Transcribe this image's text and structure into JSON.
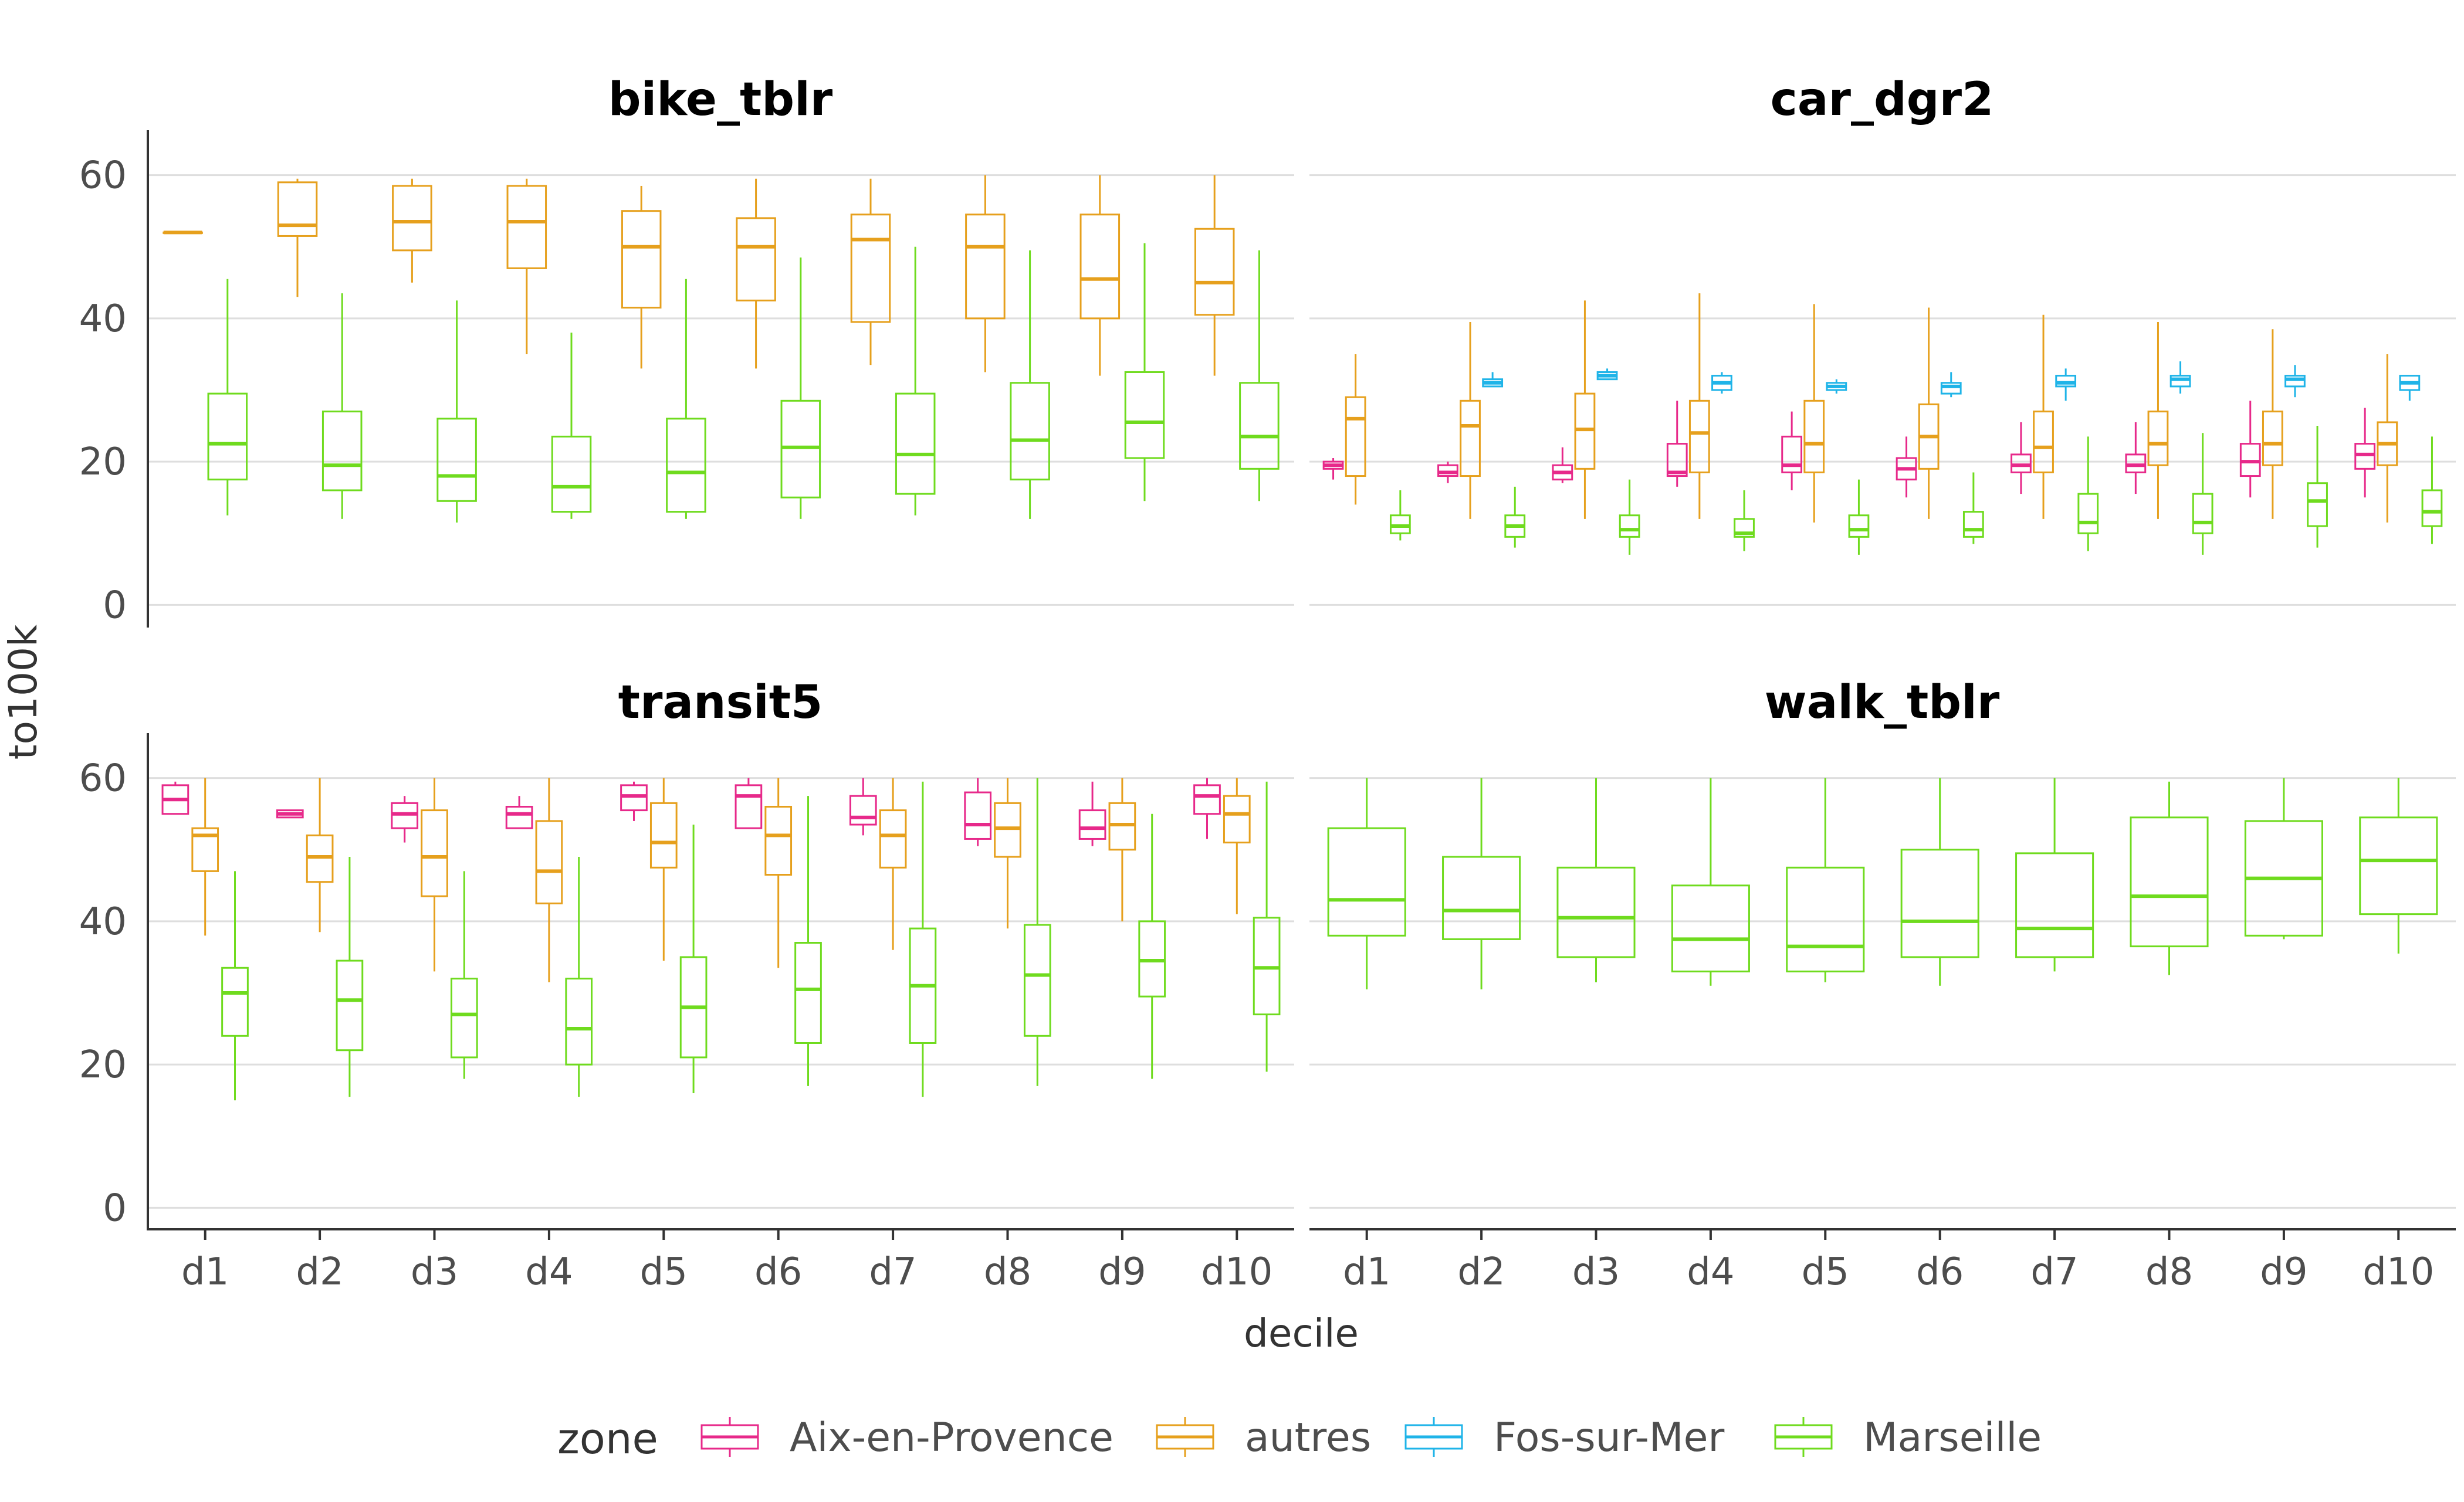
{
  "chart_data": {
    "type": "boxplot",
    "facets": [
      "bike_tblr",
      "car_dgr2",
      "transit5",
      "walk_tblr"
    ],
    "categories": [
      "d1",
      "d2",
      "d3",
      "d4",
      "d5",
      "d6",
      "d7",
      "d8",
      "d9",
      "d10"
    ],
    "xlabel": "decile",
    "ylabel": "to100k",
    "ylim": [
      -3,
      63
    ],
    "yticks": [
      "0",
      "20",
      "40",
      "60"
    ],
    "grid": true,
    "legend": {
      "title": "zone",
      "position": "bottom",
      "entries": [
        {
          "name": "Aix-en-Provence",
          "color": "#e7298a"
        },
        {
          "name": "autres",
          "color": "#e6a01d"
        },
        {
          "name": "Fos-sur-Mer",
          "color": "#1fb4e8"
        },
        {
          "name": "Marseille",
          "color": "#6fdb1e"
        }
      ]
    },
    "panels": [
      {
        "facet": "bike_tblr",
        "series": [
          {
            "name": "autres",
            "boxes": [
              [
                52,
                52,
                52,
                52,
                52
              ],
              [
                43,
                51.5,
                53,
                59,
                59.5
              ],
              [
                45,
                49.5,
                53.5,
                58.5,
                59.5
              ],
              [
                35,
                47,
                53.5,
                58.5,
                59.5
              ],
              [
                33,
                41.5,
                50,
                55,
                58.5
              ],
              [
                33,
                42.5,
                50,
                54,
                59.5
              ],
              [
                33.5,
                39.5,
                51,
                54.5,
                59.5
              ],
              [
                32.5,
                40,
                50,
                54.5,
                60
              ],
              [
                32,
                40,
                45.5,
                54.5,
                60
              ],
              [
                32,
                40.5,
                45,
                52.5,
                60
              ]
            ]
          },
          {
            "name": "Marseille",
            "boxes": [
              [
                12.5,
                17.5,
                22.5,
                29.5,
                45.5
              ],
              [
                12,
                16,
                19.5,
                27,
                43.5
              ],
              [
                11.5,
                14.5,
                18,
                26,
                42.5
              ],
              [
                12,
                13,
                16.5,
                23.5,
                38
              ],
              [
                12,
                13,
                18.5,
                26,
                45.5
              ],
              [
                12,
                15,
                22,
                28.5,
                48.5
              ],
              [
                12.5,
                15.5,
                21,
                29.5,
                50
              ],
              [
                12,
                17.5,
                23,
                31,
                49.5
              ],
              [
                14.5,
                20.5,
                25.5,
                32.5,
                50.5
              ],
              [
                14.5,
                19,
                23.5,
                31,
                49.5
              ]
            ]
          }
        ]
      },
      {
        "facet": "car_dgr2",
        "series": [
          {
            "name": "Aix-en-Provence",
            "boxes": [
              [
                17.5,
                19,
                19.5,
                20,
                20.5
              ],
              [
                17,
                18,
                18.5,
                19.5,
                20
              ],
              [
                17,
                17.5,
                18.5,
                19.5,
                22
              ],
              [
                16.5,
                18,
                18.5,
                22.5,
                28.5
              ],
              [
                16,
                18.5,
                19.5,
                23.5,
                27
              ],
              [
                15,
                17.5,
                19,
                20.5,
                23.5
              ],
              [
                15.5,
                18.5,
                19.5,
                21,
                25.5
              ],
              [
                15.5,
                18.5,
                19.5,
                21,
                25.5
              ],
              [
                15,
                18,
                20,
                22.5,
                28.5
              ],
              [
                15,
                19,
                21,
                22.5,
                27.5
              ]
            ]
          },
          {
            "name": "autres",
            "boxes": [
              [
                14,
                18,
                26,
                29,
                35
              ],
              [
                12,
                18,
                25,
                28.5,
                39.5
              ],
              [
                12,
                19,
                24.5,
                29.5,
                42.5
              ],
              [
                12,
                18.5,
                24,
                28.5,
                43.5
              ],
              [
                11.5,
                18.5,
                22.5,
                28.5,
                42
              ],
              [
                12,
                19,
                23.5,
                28,
                41.5
              ],
              [
                12,
                18.5,
                22,
                27,
                40.5
              ],
              [
                12,
                19.5,
                22.5,
                27,
                39.5
              ],
              [
                12,
                19.5,
                22.5,
                27,
                38.5
              ],
              [
                11.5,
                19.5,
                22.5,
                25.5,
                35
              ]
            ]
          },
          {
            "name": "Fos-sur-Mer",
            "boxes": null
          },
          {
            "name": "Marseille",
            "boxes": [
              [
                9,
                10,
                11,
                12.5,
                16
              ],
              [
                8,
                9.5,
                11,
                12.5,
                16.5
              ],
              [
                7,
                9.5,
                10.5,
                12.5,
                17.5
              ],
              [
                7.5,
                9.5,
                10,
                12,
                16
              ],
              [
                7,
                9.5,
                10.5,
                12.5,
                17.5
              ],
              [
                8.5,
                9.5,
                10.5,
                13,
                18.5
              ],
              [
                7.5,
                10,
                11.5,
                15.5,
                23.5
              ],
              [
                7,
                10,
                11.5,
                15.5,
                24
              ],
              [
                8,
                11,
                14.5,
                17,
                25
              ],
              [
                8.5,
                11,
                13,
                16,
                23.5
              ]
            ]
          }
        ],
        "fos_boxes": [
          null,
          [
            30.5,
            30.5,
            31,
            31.5,
            32.5
          ],
          [
            31.5,
            31.5,
            32,
            32.5,
            33
          ],
          [
            29.5,
            30,
            31,
            32,
            32.5
          ],
          [
            29.5,
            30,
            30.5,
            31,
            31.5
          ],
          [
            29,
            29.5,
            30.5,
            31,
            32.5
          ],
          [
            28.5,
            30.5,
            31,
            32,
            33
          ],
          [
            29.5,
            30.5,
            31.5,
            32,
            34
          ],
          [
            29,
            30.5,
            31.5,
            32,
            33.5
          ],
          [
            28.5,
            30,
            31,
            32,
            32
          ]
        ]
      },
      {
        "facet": "transit5",
        "series": [
          {
            "name": "Aix-en-Provence",
            "boxes": [
              [
                55,
                55,
                57,
                59,
                59.5
              ],
              [
                54.5,
                54.5,
                55,
                55.5,
                55.5
              ],
              [
                51,
                53,
                55,
                56.5,
                57.5
              ],
              [
                53,
                53,
                55,
                56,
                57.5
              ],
              [
                54,
                55.5,
                57.5,
                59,
                59.5
              ],
              [
                53,
                53,
                57.5,
                59,
                60
              ],
              [
                52,
                53.5,
                54.5,
                57.5,
                60
              ],
              [
                50.5,
                51.5,
                53.5,
                58,
                60
              ],
              [
                50.5,
                51.5,
                53,
                55.5,
                59.5
              ],
              [
                51.5,
                55,
                57.5,
                59,
                60
              ]
            ]
          },
          {
            "name": "autres",
            "boxes": [
              [
                38,
                47,
                52,
                53,
                60
              ],
              [
                38.5,
                45.5,
                49,
                52,
                60
              ],
              [
                33,
                43.5,
                49,
                55.5,
                60
              ],
              [
                31.5,
                42.5,
                47,
                54,
                60
              ],
              [
                34.5,
                47.5,
                51,
                56.5,
                60
              ],
              [
                33.5,
                46.5,
                52,
                56,
                60
              ],
              [
                36,
                47.5,
                52,
                55.5,
                60
              ],
              [
                39,
                49,
                53,
                56.5,
                60
              ],
              [
                40,
                50,
                53.5,
                56.5,
                60
              ],
              [
                41,
                51,
                55,
                57.5,
                60
              ]
            ]
          },
          {
            "name": "Marseille",
            "boxes": [
              [
                15,
                24,
                30,
                33.5,
                47
              ],
              [
                15.5,
                22,
                29,
                34.5,
                49
              ],
              [
                18,
                21,
                27,
                32,
                47
              ],
              [
                15.5,
                20,
                25,
                32,
                49
              ],
              [
                16,
                21,
                28,
                35,
                53.5
              ],
              [
                17,
                23,
                30.5,
                37,
                57.5
              ],
              [
                15.5,
                23,
                31,
                39,
                59.5
              ],
              [
                17,
                24,
                32.5,
                39.5,
                60
              ],
              [
                18,
                29.5,
                34.5,
                40,
                55
              ],
              [
                19,
                27,
                33.5,
                40.5,
                59.5
              ]
            ]
          }
        ]
      },
      {
        "facet": "walk_tblr",
        "series": [
          {
            "name": "Marseille",
            "boxes": [
              [
                30.5,
                38,
                43,
                53,
                60
              ],
              [
                30.5,
                37.5,
                41.5,
                49,
                60
              ],
              [
                31.5,
                35,
                40.5,
                47.5,
                60
              ],
              [
                31,
                33,
                37.5,
                45,
                60
              ],
              [
                31.5,
                33,
                36.5,
                47.5,
                60
              ],
              [
                31,
                35,
                40,
                50,
                60
              ],
              [
                33,
                35,
                39,
                49.5,
                60
              ],
              [
                32.5,
                36.5,
                43.5,
                54.5,
                59.5
              ],
              [
                37.5,
                38,
                46,
                54,
                60
              ],
              [
                35.5,
                41,
                48.5,
                54.5,
                60
              ]
            ]
          }
        ]
      }
    ]
  }
}
